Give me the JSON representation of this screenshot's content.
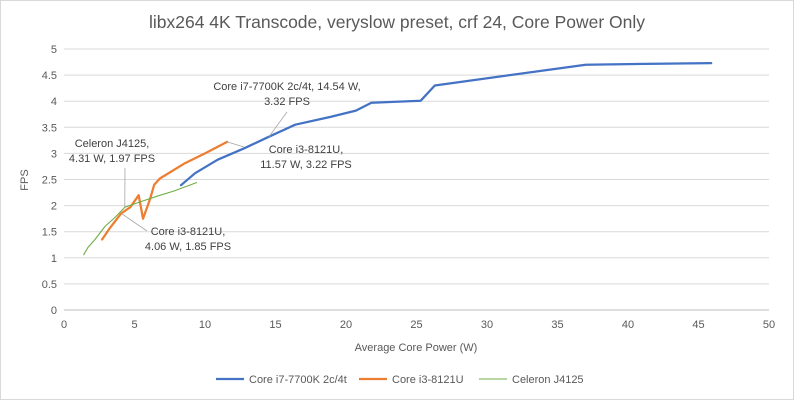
{
  "chart_data": {
    "type": "line",
    "title": "libx264 4K Transcode, veryslow preset, crf 24, Core Power Only",
    "xlabel": "Average Core Power (W)",
    "ylabel": "FPS",
    "xlim": [
      0,
      50
    ],
    "ylim": [
      0,
      5
    ],
    "x_ticks": [
      0,
      5,
      10,
      15,
      20,
      25,
      30,
      35,
      40,
      45,
      50
    ],
    "y_ticks": [
      0,
      0.5,
      1,
      1.5,
      2,
      2.5,
      3,
      3.5,
      4,
      4.5,
      5
    ],
    "x_tick_labels": [
      "0",
      "5",
      "10",
      "15",
      "20",
      "25",
      "30",
      "35",
      "40",
      "45",
      "50"
    ],
    "y_tick_labels": [
      "0",
      "0.5",
      "1",
      "1.5",
      "2",
      "2.5",
      "3",
      "3.5",
      "4",
      "4.5",
      "5"
    ],
    "grid": "horizontal",
    "legend_position": "bottom",
    "series": [
      {
        "name": "Core i7-7700K 2c/4t",
        "color": "#4472c4",
        "points": [
          [
            8.3,
            2.39
          ],
          [
            9.3,
            2.62
          ],
          [
            10.9,
            2.88
          ],
          [
            12.8,
            3.1
          ],
          [
            14.54,
            3.32
          ],
          [
            16.4,
            3.55
          ],
          [
            18.9,
            3.7
          ],
          [
            20.7,
            3.82
          ],
          [
            21.8,
            3.97
          ],
          [
            25.3,
            4.01
          ],
          [
            26.3,
            4.3
          ],
          [
            37.0,
            4.7
          ],
          [
            40.0,
            4.71
          ],
          [
            45.9,
            4.73
          ]
        ]
      },
      {
        "name": "Core i3-8121U",
        "color": "#ed7d31",
        "points": [
          [
            2.7,
            1.35
          ],
          [
            3.2,
            1.55
          ],
          [
            4.06,
            1.85
          ],
          [
            4.7,
            1.97
          ],
          [
            5.3,
            2.2
          ],
          [
            5.6,
            1.75
          ],
          [
            6.1,
            2.12
          ],
          [
            6.4,
            2.4
          ],
          [
            6.8,
            2.52
          ],
          [
            8.5,
            2.8
          ],
          [
            10.0,
            3.0
          ],
          [
            11.57,
            3.22
          ]
        ]
      },
      {
        "name": "Celeron J4125",
        "color": "#70ad47",
        "points": [
          [
            1.4,
            1.06
          ],
          [
            1.7,
            1.2
          ],
          [
            2.2,
            1.35
          ],
          [
            2.9,
            1.6
          ],
          [
            3.6,
            1.77
          ],
          [
            4.31,
            1.97
          ],
          [
            5.5,
            2.08
          ],
          [
            6.6,
            2.18
          ],
          [
            7.8,
            2.28
          ],
          [
            9.4,
            2.44
          ]
        ]
      }
    ],
    "annotations": [
      {
        "lines": [
          "Core i7-7700K 2c/4t, 14.54 W,",
          "3.32 FPS"
        ],
        "x": 14.54,
        "y": 3.32
      },
      {
        "lines": [
          "Core i3-8121U,",
          "11.57 W, 3.22  FPS"
        ],
        "x": 11.57,
        "y": 3.22
      },
      {
        "lines": [
          "Celeron J4125,",
          "4.31 W, 1.97 FPS"
        ],
        "x": 4.31,
        "y": 1.97
      },
      {
        "lines": [
          "Core i3-8121U,",
          "4.06 W, 1.85 FPS"
        ],
        "x": 4.06,
        "y": 1.85
      }
    ]
  }
}
